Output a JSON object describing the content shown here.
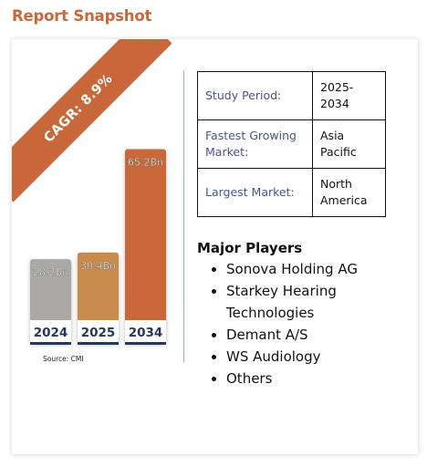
{
  "page_title": "Report Snapshot",
  "ribbon": "CAGR: 8.9%",
  "source": "Source: CMI",
  "info_table": [
    {
      "key": "Study Period:",
      "value": "2025-2034"
    },
    {
      "key": "Fastest Growing Market:",
      "value": "Asia Pacific"
    },
    {
      "key": "Largest Market:",
      "value": "North America"
    }
  ],
  "major_players": {
    "heading": "Major Players",
    "items": [
      "Sonova Holding AG",
      "Starkey Hearing Technologies",
      "Demant A/S",
      "WS Audiology",
      "Others"
    ]
  },
  "chart_data": {
    "type": "bar",
    "categories": [
      "2024",
      "2025",
      "2034"
    ],
    "values": [
      28.2,
      30.4,
      65.2
    ],
    "data_labels": [
      "28.2Bn",
      "30.4Bn",
      "65.2Bn"
    ],
    "colors": [
      "#aaa9a7",
      "#c78b4d",
      "#c8673a"
    ],
    "title": "",
    "xlabel": "",
    "ylabel": "",
    "grid": false
  }
}
